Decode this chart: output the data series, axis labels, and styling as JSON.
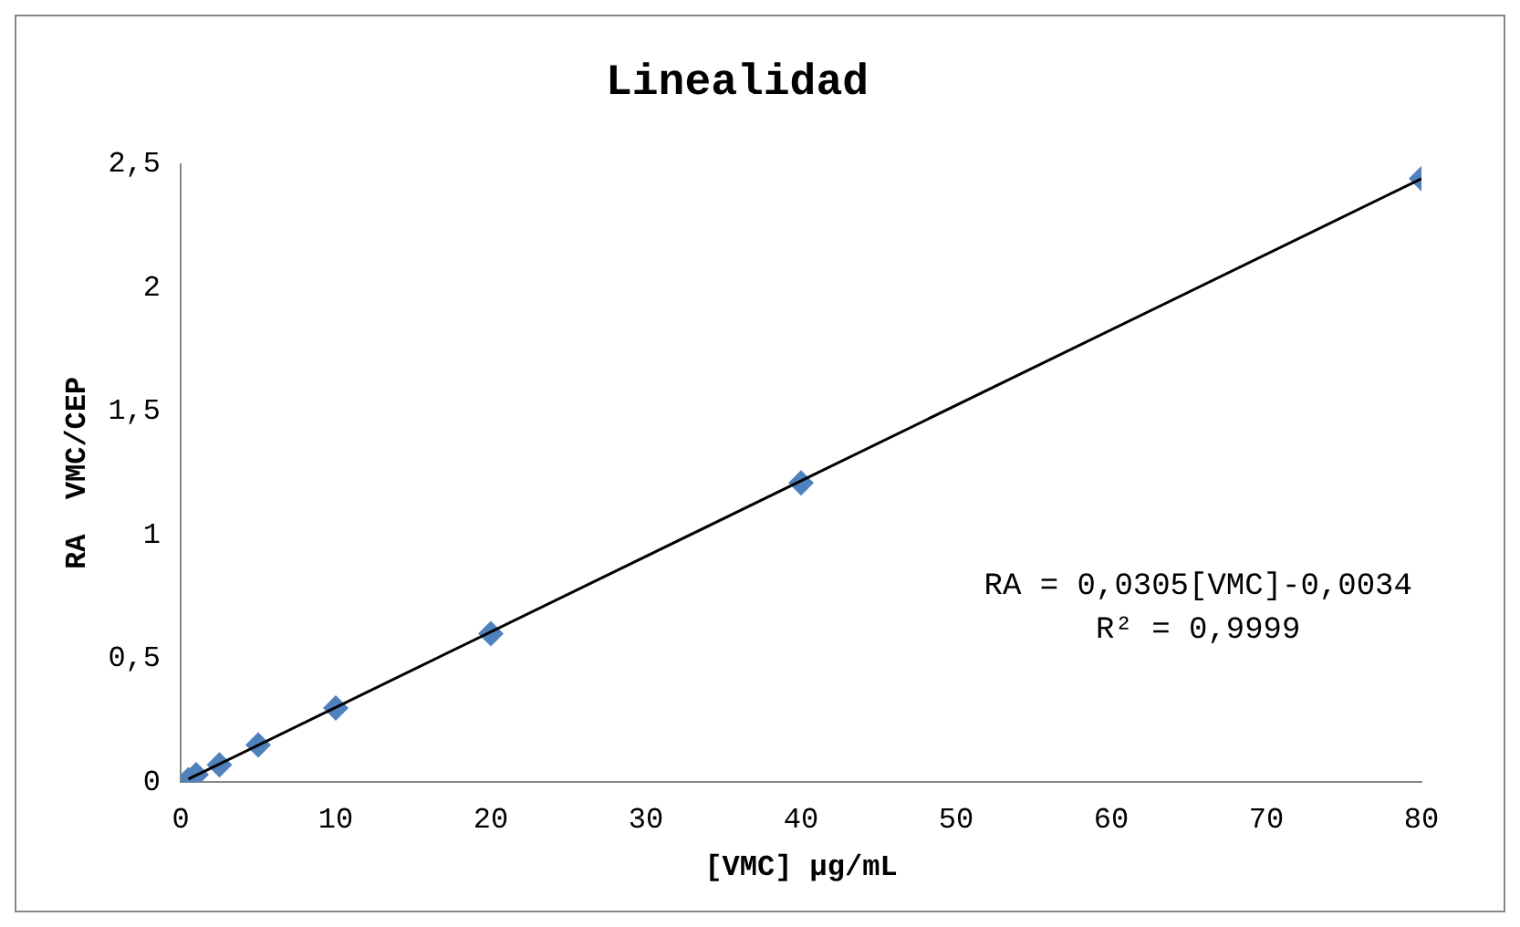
{
  "chart_data": {
    "type": "scatter",
    "title": "Linealidad",
    "xlabel": "[VMC] µg/mL",
    "ylabel": "RA  VMC/CEP",
    "series": [
      {
        "type": "scatter",
        "color": "#4f81bd",
        "x": [
          0.5,
          1,
          2.5,
          5,
          10,
          20,
          40,
          80
        ],
        "values": [
          0.01,
          0.03,
          0.07,
          0.15,
          0.3,
          0.6,
          1.21,
          2.44
        ],
        "marker": "diamond"
      },
      {
        "type": "line",
        "color": "#000000",
        "x": [
          0.5,
          80
        ],
        "values": [
          0.012,
          2.44
        ],
        "marker": "none"
      }
    ],
    "xlim": [
      0,
      80
    ],
    "xticks": [
      0,
      10,
      20,
      30,
      40,
      50,
      60,
      70,
      80
    ],
    "ylim": [
      0,
      2.5
    ],
    "yticks": [
      0,
      {
        "value": 0.5,
        "label": "0,5"
      },
      1,
      {
        "value": 1.5,
        "label": "1,5"
      },
      2,
      {
        "value": 2.5,
        "label": "2,5"
      }
    ],
    "annotations": [
      "RA = 0,0305[VMC]-0,0034",
      "R² = 0,9999"
    ],
    "grid": false,
    "legend": false
  }
}
